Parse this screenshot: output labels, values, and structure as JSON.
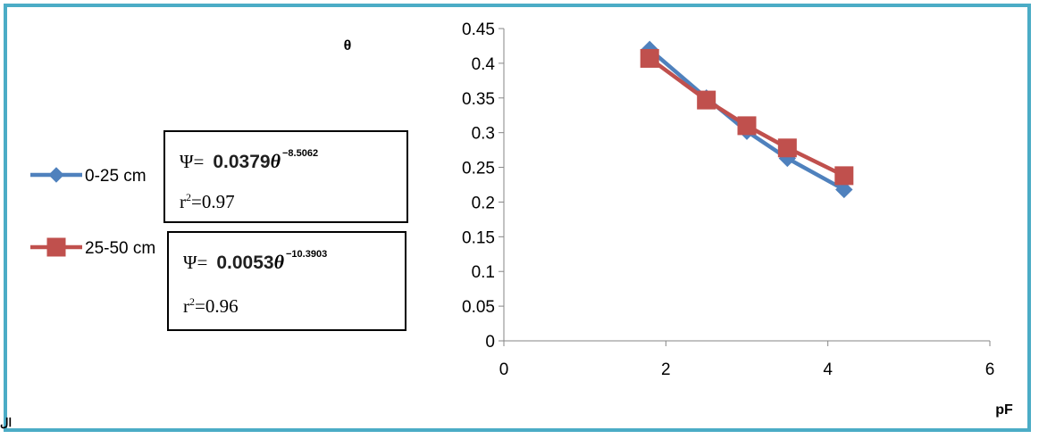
{
  "chart_data": {
    "type": "line",
    "x_title": "pF",
    "y_title": "θ",
    "xlim": [
      0,
      6
    ],
    "ylim": [
      0,
      0.45
    ],
    "x_ticks": [
      0,
      2,
      4,
      6
    ],
    "y_ticks": [
      0,
      0.05,
      0.1,
      0.15,
      0.2,
      0.25,
      0.3,
      0.35,
      0.4,
      0.45
    ],
    "y_tick_labels": [
      "0",
      "0.05",
      "0.1",
      "0.15",
      "0.2",
      "0.25",
      "0.3",
      "0.35",
      "0.4",
      "0.45"
    ],
    "x_tick_labels": [
      "0",
      "2",
      "4",
      "6"
    ],
    "grid": false,
    "legend_position": "left",
    "series": [
      {
        "name": "0-25 cm",
        "color": "#4f81bd",
        "marker": "diamond",
        "x": [
          1.8,
          2.5,
          3.0,
          3.5,
          4.2
        ],
        "y": [
          0.42,
          0.35,
          0.302,
          0.263,
          0.218
        ]
      },
      {
        "name": "25-50 cm",
        "color": "#c0504d",
        "marker": "square",
        "x": [
          1.8,
          2.5,
          3.0,
          3.5,
          4.2
        ],
        "y": [
          0.407,
          0.347,
          0.31,
          0.278,
          0.238
        ]
      }
    ]
  },
  "equations": [
    {
      "lhs": "Ψ=",
      "coef": "0.0379",
      "var": "θ",
      "exponent": "−8.5062",
      "r2_label": "r",
      "r2_sup": "2",
      "r2_value": "=0.97"
    },
    {
      "lhs": "Ψ=",
      "coef": "0.0053",
      "var": "θ",
      "exponent": "−10.3903",
      "r2_label": "r",
      "r2_sup": "2",
      "r2_value": "=0.96"
    }
  ],
  "stray_text": "ال"
}
